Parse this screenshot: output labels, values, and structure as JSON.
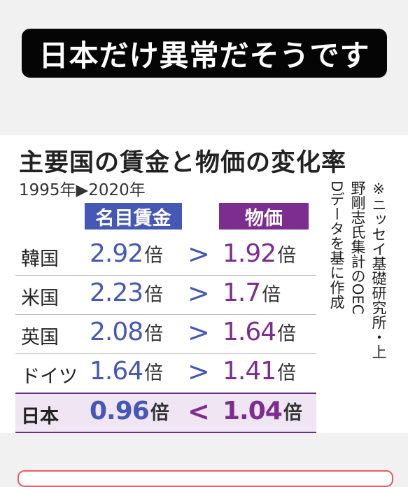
{
  "banner": {
    "text": "日本だけ異常だそうです"
  },
  "chart_data": {
    "type": "table",
    "title": "主要国の賃金と物価の変化率",
    "period": "1995年▶2020年",
    "headers": {
      "wage": "名目賃金",
      "price": "物価"
    },
    "unit": "倍",
    "rows": [
      {
        "country": "韓国",
        "wage": "2.92",
        "cmp": ">",
        "price": "1.92"
      },
      {
        "country": "米国",
        "wage": "2.23",
        "cmp": ">",
        "price": "1.7"
      },
      {
        "country": "英国",
        "wage": "2.08",
        "cmp": ">",
        "price": "1.64"
      },
      {
        "country": "ドイツ",
        "wage": "1.64",
        "cmp": ">",
        "price": "1.41"
      },
      {
        "country": "日本",
        "wage": "0.96",
        "cmp": "<",
        "price": "1.04"
      }
    ],
    "note_lines": [
      "※ニッセイ基礎研究所・上",
      "野剛志氏集計のOEC",
      "Dデータを基に作成"
    ]
  },
  "colors": {
    "wage": "#4558b5",
    "price": "#7c2d8f",
    "highlight": "#efe5f3"
  }
}
